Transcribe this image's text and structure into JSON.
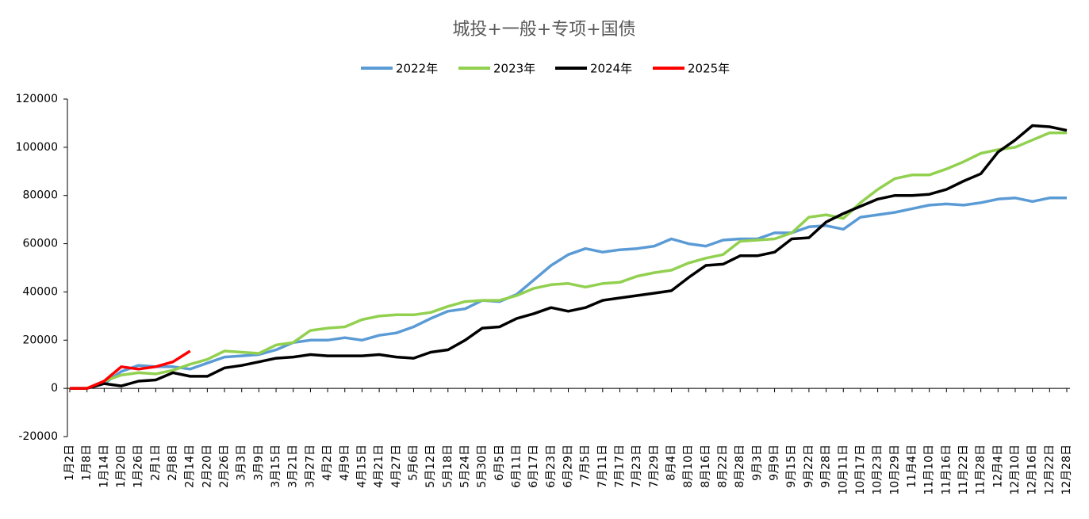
{
  "chart_data": {
    "type": "line",
    "title": "城投+一般+专项+国债",
    "categories": [
      "1月2日",
      "1月8日",
      "1月14日",
      "1月20日",
      "1月26日",
      "2月1日",
      "2月8日",
      "2月14日",
      "2月20日",
      "2月26日",
      "3月3日",
      "3月9日",
      "3月15日",
      "3月21日",
      "3月27日",
      "4月2日",
      "4月9日",
      "4月15日",
      "4月21日",
      "4月27日",
      "5月6日",
      "5月12日",
      "5月18日",
      "5月24日",
      "5月30日",
      "6月5日",
      "6月11日",
      "6月17日",
      "6月23日",
      "6月29日",
      "7月5日",
      "7月11日",
      "7月17日",
      "7月23日",
      "7月29日",
      "8月4日",
      "8月10日",
      "8月16日",
      "8月22日",
      "8月28日",
      "9月3日",
      "9月9日",
      "9月15日",
      "9月22日",
      "9月28日",
      "10月11日",
      "10月17日",
      "10月23日",
      "10月29日",
      "11月4日",
      "11月10日",
      "11月16日",
      "11月22日",
      "11月28日",
      "12月4日",
      "12月10日",
      "12月16日",
      "12月22日",
      "12月28日"
    ],
    "series": [
      {
        "name": "2022年",
        "color": "#5b9bd5",
        "values": [
          0,
          0,
          2000,
          7000,
          9500,
          9000,
          9000,
          8000,
          10500,
          13000,
          13500,
          14000,
          16000,
          19000,
          20000,
          20000,
          21000,
          20000,
          22000,
          23000,
          25500,
          29000,
          32000,
          33000,
          36500,
          36000,
          39000,
          45000,
          51000,
          55500,
          58000,
          56500,
          57500,
          58000,
          59000,
          62000,
          60000,
          59000,
          61500,
          62000,
          62000,
          64500,
          64500,
          67000,
          67500,
          66000,
          71000,
          72000,
          73000,
          74500,
          76000,
          76500,
          76000,
          77000,
          78500,
          79000,
          77500,
          79000,
          79000
        ]
      },
      {
        "name": "2023年",
        "color": "#92d050",
        "values": [
          0,
          0,
          3000,
          5500,
          6500,
          6000,
          7500,
          10000,
          12000,
          15500,
          15000,
          14500,
          18000,
          19000,
          24000,
          25000,
          25500,
          28500,
          30000,
          30500,
          30500,
          31500,
          34000,
          36000,
          36500,
          36500,
          38500,
          41500,
          43000,
          43500,
          42000,
          43500,
          44000,
          46500,
          48000,
          49000,
          52000,
          54000,
          55500,
          61000,
          61500,
          62000,
          64500,
          71000,
          72000,
          70500,
          77000,
          82500,
          87000,
          88500,
          88500,
          91000,
          94000,
          97500,
          99000,
          100000,
          103000,
          106000,
          106000
        ]
      },
      {
        "name": "2024年",
        "color": "#000000",
        "values": [
          0,
          0,
          2000,
          1000,
          3000,
          3500,
          6500,
          5000,
          5000,
          8500,
          9500,
          11000,
          12500,
          13000,
          14000,
          13500,
          13500,
          13500,
          14000,
          13000,
          12500,
          15000,
          16000,
          20000,
          25000,
          25500,
          29000,
          31000,
          33500,
          32000,
          33500,
          36500,
          37500,
          38500,
          39500,
          40500,
          46000,
          51000,
          51500,
          55000,
          55000,
          56500,
          62000,
          62500,
          69000,
          72500,
          75500,
          78500,
          80000,
          80000,
          80500,
          82500,
          86000,
          89000,
          98000,
          103000,
          109000,
          108500,
          107000
        ]
      },
      {
        "name": "2025年",
        "color": "#ff0000",
        "values": [
          0,
          0,
          3000,
          9000,
          8000,
          9000,
          11000,
          15500,
          null,
          null,
          null,
          null,
          null,
          null,
          null,
          null,
          null,
          null,
          null,
          null,
          null,
          null,
          null,
          null,
          null,
          null,
          null,
          null,
          null,
          null,
          null,
          null,
          null,
          null,
          null,
          null,
          null,
          null,
          null,
          null,
          null,
          null,
          null,
          null,
          null,
          null,
          null,
          null,
          null,
          null,
          null,
          null,
          null,
          null,
          null,
          null,
          null,
          null,
          null
        ]
      }
    ],
    "ylim": [
      -20000,
      120000
    ],
    "yticks": [
      -20000,
      0,
      20000,
      40000,
      60000,
      80000,
      100000,
      120000
    ]
  }
}
